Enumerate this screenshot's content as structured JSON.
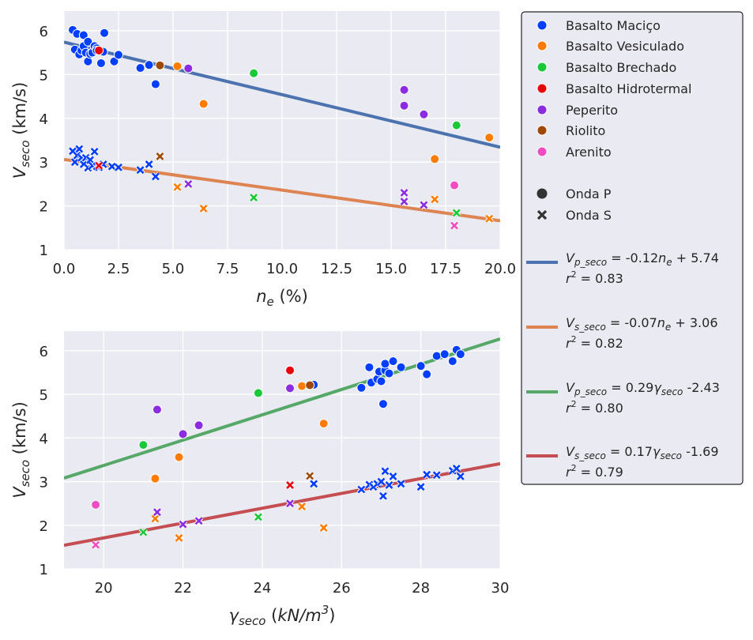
{
  "colors": {
    "Basalto Maciço": "#023eff",
    "Basalto Vesiculado": "#ff7c00",
    "Basalto Brechado": "#1ac938",
    "Basalto Hidrotermal": "#e8000b",
    "Peperito": "#8b2be2",
    "Riolito": "#9f4800",
    "Arenito": "#f14cc1",
    "fit_vp_ne": "#4c72b0",
    "fit_vs_ne": "#dd8452",
    "fit_vp_gamma": "#55a868",
    "fit_vs_gamma": "#c44e52",
    "plot_bg": "#eaeaf2",
    "grid": "#ffffff"
  },
  "chart_data": [
    {
      "type": "scatter",
      "xlabel": {
        "main": "n",
        "sub": "e",
        "unit": " (%)"
      },
      "ylabel": {
        "main": "V",
        "sub": "seco",
        "unit": " (km/s)"
      },
      "xlim": [
        0,
        20
      ],
      "ylim": [
        1,
        6.45
      ],
      "xticks": [
        "0.0",
        "2.5",
        "5.0",
        "7.5",
        "10.0",
        "12.5",
        "15.0",
        "17.5",
        "20.0"
      ],
      "yticks": [
        "1",
        "2",
        "3",
        "4",
        "5",
        "6"
      ],
      "series": [
        {
          "name": "Basalto Maciço",
          "wave": "P",
          "points": [
            [
              0.4,
              6.02
            ],
            [
              0.5,
              5.57
            ],
            [
              0.6,
              5.93
            ],
            [
              0.7,
              5.46
            ],
            [
              0.8,
              5.55
            ],
            [
              0.9,
              5.65
            ],
            [
              0.9,
              5.9
            ],
            [
              1.0,
              5.5
            ],
            [
              1.1,
              5.3
            ],
            [
              1.1,
              5.75
            ],
            [
              1.2,
              5.47
            ],
            [
              1.3,
              5.5
            ],
            [
              1.4,
              5.65
            ],
            [
              1.5,
              5.6
            ],
            [
              1.5,
              5.55
            ],
            [
              1.7,
              5.26
            ],
            [
              1.8,
              5.52
            ],
            [
              1.85,
              5.95
            ],
            [
              2.3,
              5.3
            ],
            [
              2.5,
              5.45
            ],
            [
              3.5,
              5.15
            ],
            [
              3.9,
              5.22
            ],
            [
              4.2,
              4.78
            ]
          ]
        },
        {
          "name": "Basalto Vesiculado",
          "wave": "P",
          "points": [
            [
              5.2,
              5.19
            ],
            [
              6.4,
              4.33
            ],
            [
              17.0,
              3.07
            ],
            [
              19.5,
              3.56
            ]
          ]
        },
        {
          "name": "Basalto Brechado",
          "wave": "P",
          "points": [
            [
              8.7,
              5.03
            ],
            [
              18.0,
              3.84
            ]
          ]
        },
        {
          "name": "Basalto Hidrotermal",
          "wave": "P",
          "points": [
            [
              1.6,
              5.55
            ]
          ]
        },
        {
          "name": "Peperito",
          "wave": "P",
          "points": [
            [
              5.7,
              5.14
            ],
            [
              15.6,
              4.65
            ],
            [
              15.6,
              4.29
            ],
            [
              16.5,
              4.09
            ]
          ]
        },
        {
          "name": "Riolito",
          "wave": "P",
          "points": [
            [
              4.4,
              5.21
            ]
          ]
        },
        {
          "name": "Arenito",
          "wave": "P",
          "points": [
            [
              17.9,
              2.47
            ]
          ]
        },
        {
          "name": "Basalto Maciço",
          "wave": "S",
          "points": [
            [
              0.4,
              3.25
            ],
            [
              0.5,
              3.0
            ],
            [
              0.6,
              3.15
            ],
            [
              0.7,
              3.3
            ],
            [
              0.8,
              3.1
            ],
            [
              0.9,
              2.95
            ],
            [
              1.0,
              3.1
            ],
            [
              1.1,
              2.87
            ],
            [
              1.2,
              3.05
            ],
            [
              1.3,
              2.92
            ],
            [
              1.4,
              3.24
            ],
            [
              1.5,
              2.9
            ],
            [
              1.6,
              2.88
            ],
            [
              1.8,
              2.95
            ],
            [
              2.2,
              2.9
            ],
            [
              2.5,
              2.88
            ],
            [
              3.5,
              2.82
            ],
            [
              3.9,
              2.95
            ],
            [
              4.2,
              2.67
            ]
          ]
        },
        {
          "name": "Basalto Vesiculado",
          "wave": "S",
          "points": [
            [
              5.2,
              2.43
            ],
            [
              6.4,
              1.94
            ],
            [
              17.0,
              2.15
            ],
            [
              19.5,
              1.71
            ]
          ]
        },
        {
          "name": "Basalto Brechado",
          "wave": "S",
          "points": [
            [
              8.7,
              2.19
            ],
            [
              18.0,
              1.84
            ]
          ]
        },
        {
          "name": "Basalto Hidrotermal",
          "wave": "S",
          "points": [
            [
              1.6,
              2.92
            ]
          ]
        },
        {
          "name": "Peperito",
          "wave": "S",
          "points": [
            [
              5.7,
              2.5
            ],
            [
              15.6,
              2.3
            ],
            [
              15.6,
              2.1
            ],
            [
              16.5,
              2.02
            ]
          ]
        },
        {
          "name": "Riolito",
          "wave": "S",
          "points": [
            [
              4.4,
              3.13
            ]
          ]
        },
        {
          "name": "Arenito",
          "wave": "S",
          "points": [
            [
              17.9,
              1.55
            ]
          ]
        }
      ],
      "fits": [
        {
          "label": "vp_ne",
          "slope": -0.12,
          "intercept": 5.74
        },
        {
          "label": "vs_ne",
          "slope": -0.07,
          "intercept": 3.06
        }
      ]
    },
    {
      "type": "scatter",
      "xlabel": {
        "main": "γ",
        "sub": "seco",
        "unit": " (kN/m",
        "sup": "3",
        "close": ")"
      },
      "ylabel": {
        "main": "V",
        "sub": "seco",
        "unit": " (km/s)"
      },
      "xlim": [
        19,
        30
      ],
      "ylim": [
        1,
        6.45
      ],
      "xticks": [
        "20",
        "22",
        "24",
        "26",
        "28",
        "30"
      ],
      "yticks": [
        "1",
        "2",
        "3",
        "4",
        "5",
        "6"
      ],
      "series": [
        {
          "name": "Basalto Maciço",
          "wave": "P",
          "points": [
            [
              25.3,
              5.22
            ],
            [
              26.5,
              5.15
            ],
            [
              26.7,
              5.62
            ],
            [
              26.75,
              5.27
            ],
            [
              26.9,
              5.35
            ],
            [
              26.95,
              5.52
            ],
            [
              27.0,
              5.3
            ],
            [
              27.05,
              4.78
            ],
            [
              27.1,
              5.55
            ],
            [
              27.1,
              5.7
            ],
            [
              27.2,
              5.48
            ],
            [
              27.3,
              5.76
            ],
            [
              27.5,
              5.62
            ],
            [
              28.0,
              5.65
            ],
            [
              28.15,
              5.46
            ],
            [
              28.4,
              5.88
            ],
            [
              28.6,
              5.92
            ],
            [
              28.8,
              5.76
            ],
            [
              28.9,
              6.02
            ],
            [
              29.0,
              5.92
            ]
          ]
        },
        {
          "name": "Basalto Vesiculado",
          "wave": "P",
          "points": [
            [
              21.3,
              3.07
            ],
            [
              21.9,
              3.56
            ],
            [
              25.0,
              5.19
            ],
            [
              25.55,
              4.33
            ]
          ]
        },
        {
          "name": "Basalto Brechado",
          "wave": "P",
          "points": [
            [
              21.0,
              3.84
            ],
            [
              23.9,
              5.03
            ]
          ]
        },
        {
          "name": "Basalto Hidrotermal",
          "wave": "P",
          "points": [
            [
              24.7,
              5.55
            ]
          ]
        },
        {
          "name": "Peperito",
          "wave": "P",
          "points": [
            [
              21.35,
              4.65
            ],
            [
              22.0,
              4.09
            ],
            [
              22.4,
              4.29
            ],
            [
              24.7,
              5.14
            ]
          ]
        },
        {
          "name": "Riolito",
          "wave": "P",
          "points": [
            [
              25.2,
              5.21
            ]
          ]
        },
        {
          "name": "Arenito",
          "wave": "P",
          "points": [
            [
              19.8,
              2.47
            ]
          ]
        },
        {
          "name": "Basalto Maciço",
          "wave": "S",
          "points": [
            [
              25.3,
              2.95
            ],
            [
              26.5,
              2.82
            ],
            [
              26.7,
              2.93
            ],
            [
              26.8,
              2.88
            ],
            [
              26.9,
              2.95
            ],
            [
              27.0,
              3.0
            ],
            [
              27.05,
              2.67
            ],
            [
              27.1,
              3.24
            ],
            [
              27.2,
              2.92
            ],
            [
              27.3,
              3.12
            ],
            [
              27.5,
              2.95
            ],
            [
              28.0,
              2.88
            ],
            [
              28.15,
              3.16
            ],
            [
              28.4,
              3.15
            ],
            [
              28.8,
              3.25
            ],
            [
              28.9,
              3.3
            ],
            [
              29.0,
              3.12
            ]
          ]
        },
        {
          "name": "Basalto Vesiculado",
          "wave": "S",
          "points": [
            [
              21.3,
              2.15
            ],
            [
              21.9,
              1.71
            ],
            [
              25.0,
              2.43
            ],
            [
              25.55,
              1.94
            ]
          ]
        },
        {
          "name": "Basalto Brechado",
          "wave": "S",
          "points": [
            [
              21.0,
              1.84
            ],
            [
              23.9,
              2.19
            ]
          ]
        },
        {
          "name": "Basalto Hidrotermal",
          "wave": "S",
          "points": [
            [
              24.7,
              2.92
            ]
          ]
        },
        {
          "name": "Peperito",
          "wave": "S",
          "points": [
            [
              21.35,
              2.3
            ],
            [
              22.0,
              2.02
            ],
            [
              22.4,
              2.1
            ],
            [
              24.7,
              2.5
            ]
          ]
        },
        {
          "name": "Riolito",
          "wave": "S",
          "points": [
            [
              25.2,
              3.13
            ]
          ]
        },
        {
          "name": "Arenito",
          "wave": "S",
          "points": [
            [
              19.8,
              1.55
            ]
          ]
        }
      ],
      "fits": [
        {
          "label": "vp_gamma",
          "slope": 0.29,
          "intercept": -2.43
        },
        {
          "label": "vs_gamma",
          "slope": 0.17,
          "intercept": -1.69
        }
      ]
    }
  ],
  "legend": {
    "placement": "right",
    "lithologies": [
      "Basalto Maciço",
      "Basalto Vesiculado",
      "Basalto Brechado",
      "Basalto Hidrotermal",
      "Peperito",
      "Riolito",
      "Arenito"
    ],
    "waves": [
      "Onda P",
      "Onda S"
    ],
    "fits": [
      {
        "key": "fit_vp_ne",
        "v": "V",
        "sub": "p_seco",
        "eq": " = -0.12",
        "var": "n",
        "varsub": "e",
        "tail": " + 5.74",
        "r2": " = 0.83"
      },
      {
        "key": "fit_vs_ne",
        "v": "V",
        "sub": "s_seco",
        "eq": " = -0.07",
        "var": "n",
        "varsub": "e",
        "tail": " + 3.06",
        "r2": " = 0.82"
      },
      {
        "key": "fit_vp_gamma",
        "v": "V",
        "sub": "p_seco",
        "eq": " = 0.29",
        "var": "γ",
        "varsub": "seco",
        "tail": "  -2.43",
        "r2": " = 0.80"
      },
      {
        "key": "fit_vs_gamma",
        "v": "V",
        "sub": "s_seco",
        "eq": " = 0.17",
        "var": "γ",
        "varsub": "seco",
        "tail": "  -1.69",
        "r2": " = 0.79"
      }
    ],
    "r_symbol": "r",
    "r_sup": "2"
  }
}
